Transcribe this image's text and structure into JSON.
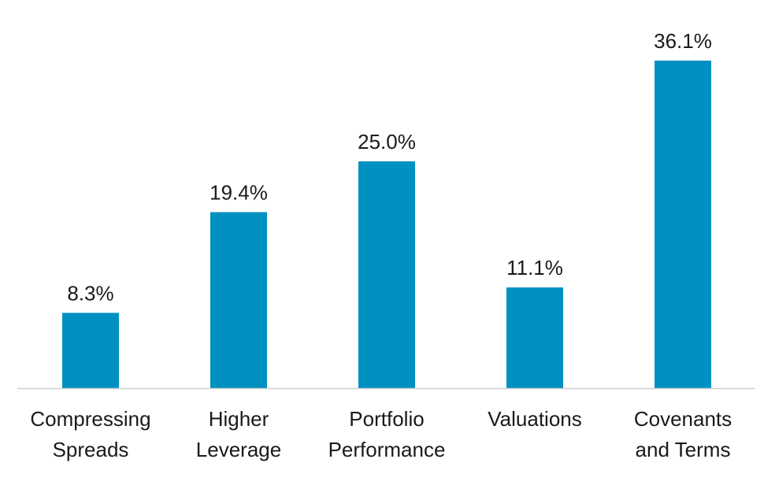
{
  "chart_data": {
    "type": "bar",
    "categories": [
      [
        "Compressing",
        "Spreads"
      ],
      [
        "Higher",
        "Leverage"
      ],
      [
        "Portfolio",
        "Performance"
      ],
      [
        "Valuations"
      ],
      [
        "Covenants",
        "and Terms"
      ]
    ],
    "values": [
      8.3,
      19.4,
      25.0,
      11.1,
      36.1
    ],
    "data_labels": [
      "8.3%",
      "19.4%",
      "25.0%",
      "11.1%",
      "36.1%"
    ],
    "ylim": [
      0,
      36.1
    ],
    "grid": false,
    "legend": "none",
    "colors": {
      "bar": "#0090c1",
      "baseline": "#d0d0d0",
      "text": "#1a1a1a"
    }
  }
}
